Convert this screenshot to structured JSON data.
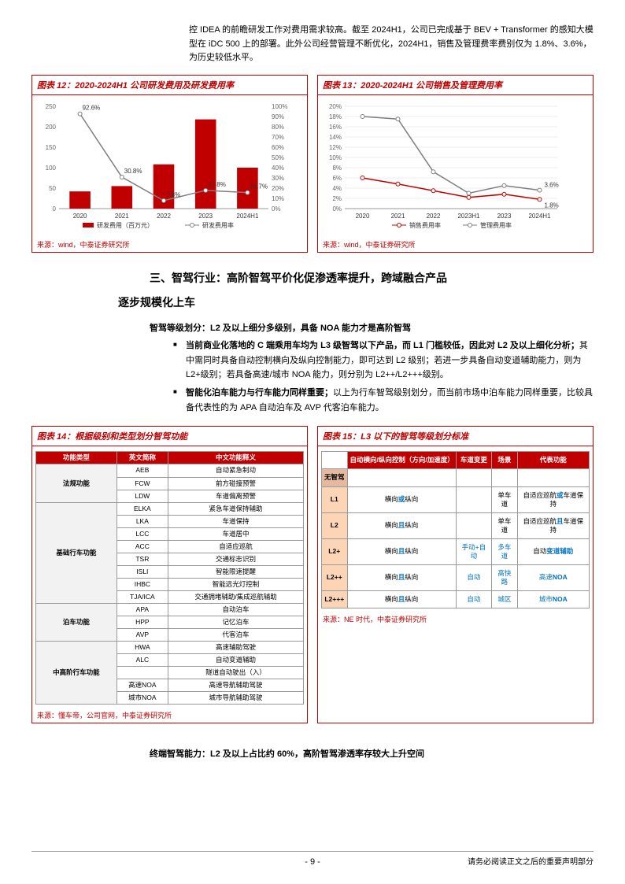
{
  "top_para": "控 IDEA 的前瞻研发工作对费用需求较高。截至 2024H1，公司已完成基于 BEV + Transformer 的感知大模型在 iDC 500 上的部署。此外公司经营管理不断优化，2024H1，销售及管理费率费别仅为 1.8%、3.6%，为历史较低水平。",
  "chart12": {
    "title": "图表 12：2020-2024H1 公司研发费用及研发费用率",
    "categories": [
      "2020",
      "2021",
      "2022",
      "2023",
      "2024H1"
    ],
    "bars": [
      42,
      55,
      108,
      218,
      100
    ],
    "line": [
      92.6,
      30.8,
      7.8,
      17.8,
      15.7
    ],
    "bar_color": "#c00000",
    "line_color": "#7f7f7f",
    "y1_max": 250,
    "y1_step": 50,
    "y2_max": 100,
    "y2_step": 10,
    "legend": [
      "研发费用（百万元）",
      "研发费用率"
    ],
    "source": "来源：wind，中泰证券研究所"
  },
  "chart13": {
    "title": "图表 13：2020-2024H1 公司销售及管理费用率",
    "categories": [
      "2020",
      "2021",
      "2022",
      "2023H1",
      "2023",
      "2024H1"
    ],
    "sales": [
      6.0,
      4.8,
      3.5,
      2.2,
      2.8,
      1.8
    ],
    "admin": [
      18.0,
      17.5,
      7.2,
      3.0,
      4.5,
      3.6
    ],
    "sales_color": "#c00000",
    "admin_color": "#7f7f7f",
    "y_max": 20,
    "y_step": 2,
    "end_labels": {
      "sales": "1.8%",
      "admin": "3.6%"
    },
    "legend": [
      "销售费用率",
      "管理费用率"
    ],
    "source": "来源：wind，中泰证券研究所"
  },
  "section": {
    "title_a": "三、智驾行业：高阶智驾平价化促渗透率提升，跨域融合产品",
    "title_b": "逐步规模化上车",
    "sub": "智驾等级划分：L2 及以上细分多级别，具备 NOA 能力才是高阶智驾",
    "b1_a": "当前商业化落地的 C 端乘用车均为 L3 级智驾以下产品，而 L1 门槛较低，因此对 L2 及以上细化分析；",
    "b1_b": "其中需同时具备自动控制横向及纵向控制能力，即可达到 L2 级别；若进一步具备自动变道辅助能力，则为 L2+级别；若具备高速/城市 NOA 能力，则分别为 L2++/L2+++级别。",
    "b2_a": "智能化泊车能力与行车能力同样重要；",
    "b2_b": "以上为行车智驾级别划分，而当前市场中泊车能力同样重要，比较具备代表性的为 APA 自动泊车及 AVP 代客泊车能力。"
  },
  "table14": {
    "title": "图表 14：根据级别和类型划分智驾功能",
    "headers": [
      "功能类型",
      "英文简称",
      "中文功能释义"
    ],
    "groups": [
      {
        "cat": "法规功能",
        "rows": [
          [
            "AEB",
            "自动紧急制动"
          ],
          [
            "FCW",
            "前方碰撞预警"
          ],
          [
            "LDW",
            "车道偏离预警"
          ]
        ]
      },
      {
        "cat": "基础行车功能",
        "rows": [
          [
            "ELKA",
            "紧急车道保持辅助"
          ],
          [
            "LKA",
            "车道保持"
          ],
          [
            "LCC",
            "车道居中"
          ],
          [
            "ACC",
            "自适应巡航"
          ],
          [
            "TSR",
            "交通标志识别"
          ],
          [
            "ISLI",
            "智能限速提醒"
          ],
          [
            "IHBC",
            "智能远光灯控制"
          ],
          [
            "TJA/ICA",
            "交通拥堵辅助/集成巡航辅助"
          ]
        ]
      },
      {
        "cat": "泊车功能",
        "rows": [
          [
            "APA",
            "自动泊车"
          ],
          [
            "HPP",
            "记忆泊车"
          ],
          [
            "AVP",
            "代客泊车"
          ]
        ]
      },
      {
        "cat": "中高阶行车功能",
        "rows": [
          [
            "HWA",
            "高速辅助驾驶"
          ],
          [
            "ALC",
            "自动变道辅助"
          ],
          [
            "",
            "隧道自动驶出（入）"
          ],
          [
            "高速NOA",
            "高速导航辅助驾驶"
          ],
          [
            "城市NOA",
            "城市导航辅助驾驶"
          ]
        ]
      }
    ],
    "source": "来源：懂车帝，公司官网，中泰证券研究所"
  },
  "table15": {
    "title": "图表 15：L3 以下的智驾等级划分标准",
    "headers": [
      "",
      "自动横向/纵向控制（方向/加速度）",
      "车道变更",
      "场景",
      "代表功能"
    ],
    "rows": [
      {
        "lbl": "无智驾",
        "c": [
          "",
          "",
          "",
          ""
        ],
        "first": true
      },
      {
        "lbl": "L1",
        "c": [
          "横向<span class='blue-b'>或</span>纵向",
          "",
          "单车道",
          "自适应巡航<span class='blue-b'>或</span>车道保持"
        ]
      },
      {
        "lbl": "L2",
        "c": [
          "横向<span class='blue-b'>且</span>纵向",
          "",
          "单车道",
          "自适应巡航<span class='blue-b'>且</span>车道保持"
        ]
      },
      {
        "lbl": "L2+",
        "c": [
          "横向<span class='blue-b'>且</span>纵向",
          "<span class='blue'>手动+自动</span>",
          "<span class='blue'>多车道</span>",
          "自动<span class='blue-b'>变道辅助</span>"
        ]
      },
      {
        "lbl": "L2++",
        "c": [
          "横向<span class='blue-b'>且</span>纵向",
          "<span class='blue'>自动</span>",
          "<span class='blue'>高快路</span>",
          "<span class='blue'>高速<b>NOA</b></span>"
        ]
      },
      {
        "lbl": "L2+++",
        "c": [
          "横向<span class='blue-b'>且</span>纵向",
          "<span class='blue'>自动</span>",
          "<span class='blue'>城区</span>",
          "<span class='blue'>城市<b>NOA</b></span>"
        ]
      }
    ],
    "source": "来源：NE 时代，中泰证券研究所"
  },
  "final_line": "终端智驾能力：L2 及以上占比约 60%，高阶智驾渗透率存较大上升空间",
  "footer": {
    "page": "- 9 -",
    "right": "请务必阅读正文之后的重要声明部分"
  }
}
